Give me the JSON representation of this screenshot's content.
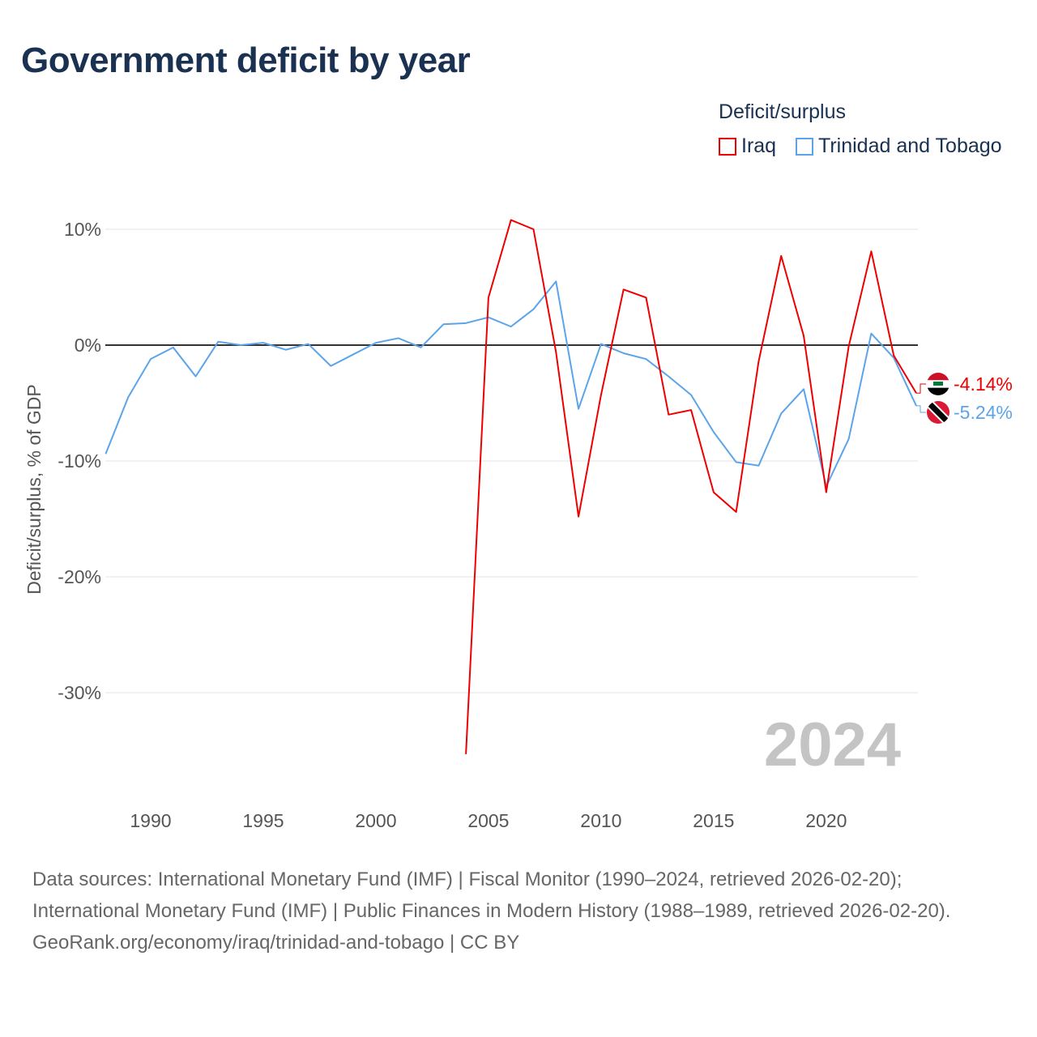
{
  "chart_data": {
    "type": "line",
    "title": "Government deficit by year",
    "ylabel": "Deficit/surplus, % of GDP",
    "xlabel": "",
    "xlim": [
      1988,
      2024
    ],
    "ylim": [
      -37,
      12
    ],
    "x_ticks": [
      {
        "value": 1990,
        "label": "1990"
      },
      {
        "value": 1995,
        "label": "1995"
      },
      {
        "value": 2000,
        "label": "2000"
      },
      {
        "value": 2005,
        "label": "2005"
      },
      {
        "value": 2010,
        "label": "2010"
      },
      {
        "value": 2015,
        "label": "2015"
      },
      {
        "value": 2020,
        "label": "2020"
      }
    ],
    "y_ticks": [
      {
        "value": 10,
        "label": "10%"
      },
      {
        "value": 0,
        "label": "0%"
      },
      {
        "value": -10,
        "label": "-10%"
      },
      {
        "value": -20,
        "label": "-20%"
      },
      {
        "value": -30,
        "label": "-30%"
      }
    ],
    "legend_title": "Deficit/surplus",
    "legend_placement": "top-right",
    "year_watermark": "2024",
    "series": [
      {
        "name": "Iraq",
        "color": "#ee0000",
        "end_label": "-4.14%",
        "flag": "iraq",
        "x": [
          2004,
          2005,
          2006,
          2007,
          2008,
          2009,
          2010,
          2011,
          2012,
          2013,
          2014,
          2015,
          2016,
          2017,
          2018,
          2019,
          2020,
          2021,
          2022,
          2023,
          2024
        ],
        "values": [
          -35.3,
          4.1,
          10.8,
          10.0,
          -0.6,
          -14.8,
          -4.3,
          4.8,
          4.1,
          -6.0,
          -5.6,
          -12.7,
          -14.4,
          -1.4,
          7.7,
          0.8,
          -12.7,
          -0.1,
          8.1,
          -0.9,
          -4.14
        ]
      },
      {
        "name": "Trinidad and Tobago",
        "color": "#5ba4ea",
        "end_label": "-5.24%",
        "flag": "trinidad-and-tobago",
        "x": [
          1988,
          1989,
          1990,
          1991,
          1992,
          1993,
          1994,
          1995,
          1996,
          1997,
          1998,
          1999,
          2000,
          2001,
          2002,
          2003,
          2004,
          2005,
          2006,
          2007,
          2008,
          2009,
          2010,
          2011,
          2012,
          2013,
          2014,
          2015,
          2016,
          2017,
          2018,
          2019,
          2020,
          2021,
          2022,
          2023,
          2024
        ],
        "values": [
          -9.4,
          -4.5,
          -1.2,
          -0.2,
          -2.7,
          0.3,
          0,
          0.2,
          -0.4,
          0.1,
          -1.8,
          -0.8,
          0.2,
          0.6,
          -0.2,
          1.8,
          1.9,
          2.4,
          1.6,
          3.1,
          5.5,
          -5.5,
          0.1,
          -0.7,
          -1.2,
          -2.7,
          -4.3,
          -7.5,
          -10.1,
          -10.4,
          -5.9,
          -3.8,
          -12.2,
          -8.1,
          1.0,
          -1.1,
          -5.24
        ]
      }
    ]
  },
  "footer": {
    "sources": "Data sources: International Monetary Fund (IMF) | Fiscal Monitor (1990–2024, retrieved 2026-02-20); International Monetary Fund (IMF) | Public Finances in Modern History (1988–1989, retrieved 2026-02-20).",
    "credit": "GeoRank.org/economy/iraq/trinidad-and-tobago | CC BY"
  }
}
